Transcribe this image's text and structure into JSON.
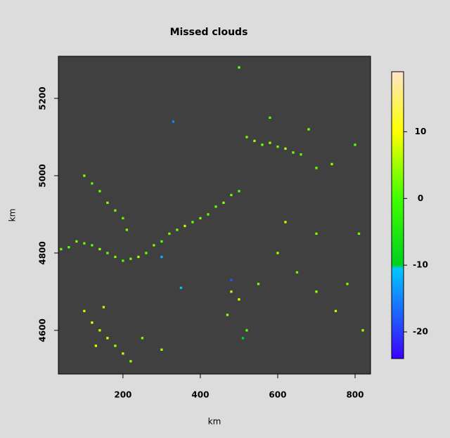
{
  "chart_data": {
    "type": "raster",
    "title": "Missed clouds",
    "x_label": "km",
    "y_label": "km",
    "xlim": [
      33,
      840
    ],
    "ylim": [
      4487,
      5309
    ],
    "xticks": [
      200,
      400,
      600,
      800
    ],
    "yticks": [
      4600,
      4800,
      5000,
      5200
    ],
    "background": "#404040",
    "colorbar": {
      "lim": [
        -24,
        19
      ],
      "ticks": [
        -20,
        -10,
        0,
        10
      ],
      "stops": [
        {
          "value": -24,
          "color": "#3a00ff"
        },
        {
          "value": -10.5,
          "color": "#00c8ff"
        },
        {
          "value": -10,
          "color": "#00d020"
        },
        {
          "value": 0,
          "color": "#40ff00"
        },
        {
          "value": 10,
          "color": "#ffff00"
        },
        {
          "value": 19,
          "color": "#ffe4c8"
        }
      ]
    },
    "x": [
      40,
      60,
      80,
      100,
      120,
      140,
      160,
      180,
      200,
      220,
      240,
      260,
      280,
      300,
      320,
      340,
      360,
      380,
      400,
      420,
      440,
      460,
      480,
      500,
      100,
      120,
      140,
      160,
      180,
      200,
      210,
      520,
      540,
      560,
      580,
      600,
      620,
      640,
      660,
      700,
      740,
      800,
      100,
      120,
      140,
      160,
      180,
      200,
      220,
      150,
      130,
      250,
      300,
      480,
      500,
      470,
      520,
      550,
      600,
      620,
      650,
      700,
      750,
      780,
      820,
      810,
      700,
      300,
      330,
      350,
      480,
      510,
      500,
      580,
      680
    ],
    "y": [
      4810,
      4815,
      4830,
      4825,
      4820,
      4810,
      4800,
      4790,
      4780,
      4785,
      4790,
      4800,
      4820,
      4830,
      4850,
      4860,
      4870,
      4880,
      4890,
      4900,
      4920,
      4930,
      4950,
      4960,
      5000,
      4980,
      4960,
      4930,
      4910,
      4890,
      4860,
      5100,
      5090,
      5080,
      5085,
      5075,
      5070,
      5060,
      5055,
      5020,
      5030,
      5080,
      4650,
      4620,
      4600,
      4580,
      4560,
      4540,
      4520,
      4660,
      4560,
      4580,
      4550,
      4700,
      4680,
      4640,
      4600,
      4720,
      4800,
      4880,
      4750,
      4700,
      4650,
      4720,
      4600,
      4850,
      4850,
      4790,
      5140,
      4710,
      4730,
      4580,
      5280,
      5150,
      5120
    ],
    "values": [
      2,
      1,
      3,
      2,
      1,
      4,
      2,
      3,
      1,
      2,
      5,
      2,
      3,
      1,
      2,
      3,
      6,
      2,
      3,
      1,
      2,
      4,
      2,
      1,
      3,
      1,
      2,
      4,
      2,
      1,
      3,
      2,
      5,
      3,
      4,
      2,
      6,
      3,
      1,
      2,
      4,
      1,
      7,
      9,
      6,
      8,
      5,
      7,
      4,
      6,
      8,
      3,
      5,
      6,
      8,
      4,
      2,
      3,
      5,
      7,
      2,
      4,
      6,
      3,
      5,
      2,
      3,
      -12,
      -15,
      -11,
      -18,
      -9,
      2,
      1,
      3
    ]
  }
}
